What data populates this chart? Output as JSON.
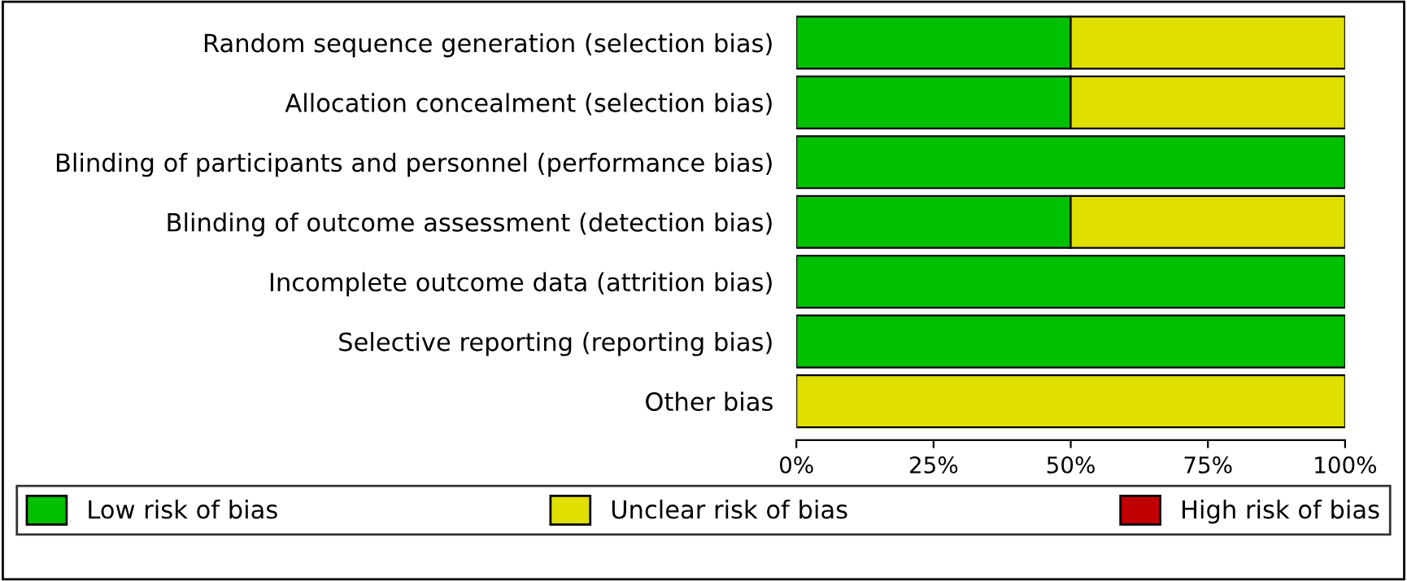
{
  "chart_data": {
    "type": "bar",
    "orientation": "horizontal",
    "stacked": true,
    "categories": [
      "Random sequence generation (selection bias)",
      "Allocation concealment (selection bias)",
      "Blinding of participants and personnel (performance bias)",
      "Blinding of outcome assessment (detection bias)",
      "Incomplete outcome data (attrition bias)",
      "Selective reporting (reporting bias)",
      "Other bias"
    ],
    "series": [
      {
        "name": "Low risk of bias",
        "color": "#00c000",
        "values": [
          50,
          50,
          100,
          50,
          100,
          100,
          0
        ]
      },
      {
        "name": "Unclear risk of bias",
        "color": "#e0e000",
        "values": [
          50,
          50,
          0,
          50,
          0,
          0,
          100
        ]
      },
      {
        "name": "High risk of bias",
        "color": "#c00000",
        "values": [
          0,
          0,
          0,
          0,
          0,
          0,
          0
        ]
      }
    ],
    "xlim": [
      0,
      100
    ],
    "xticks": [
      {
        "value": 0,
        "label": "0%"
      },
      {
        "value": 25,
        "label": "25%"
      },
      {
        "value": 50,
        "label": "50%"
      },
      {
        "value": 75,
        "label": "75%"
      },
      {
        "value": 100,
        "label": "100%"
      }
    ],
    "grid": false,
    "legend": "bottom"
  }
}
